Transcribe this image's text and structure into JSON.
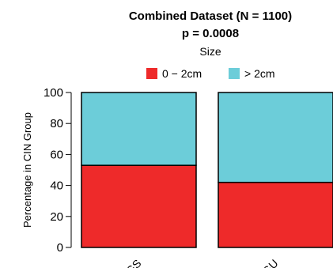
{
  "chart_data": {
    "type": "bar",
    "stacked": true,
    "title_lines": [
      "Combined Dataset (N = 1100)",
      "p = 0.0008"
    ],
    "legend": {
      "title": "Size",
      "entries": [
        "0 − 2cm",
        "> 2cm"
      ],
      "placement": "top"
    },
    "ylabel": "Percentage in CIN Group",
    "xlabel": "",
    "categories": [
      "GS",
      "GU"
    ],
    "series": [
      {
        "name": "0 − 2cm",
        "color": "#ee2a2a",
        "values": [
          53,
          42
        ]
      },
      {
        "name": "> 2cm",
        "color": "#6ccdd9",
        "values": [
          47,
          58
        ]
      }
    ],
    "ylim": [
      0,
      100
    ],
    "yticks": [
      0,
      20,
      40,
      60,
      80,
      100
    ],
    "grid": false
  }
}
